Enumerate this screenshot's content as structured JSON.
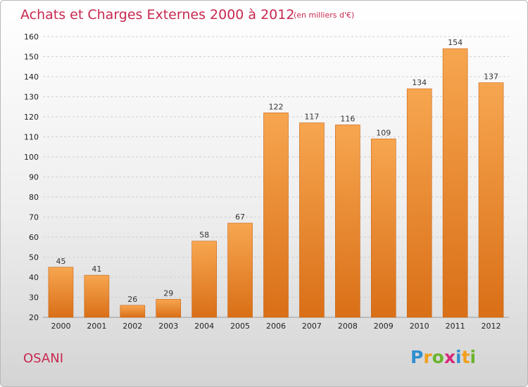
{
  "chart_data": {
    "type": "bar",
    "title": "Achats et Charges Externes 2000 à 2012",
    "subtitle": "(en milliers d'€)",
    "categories": [
      "2000",
      "2001",
      "2002",
      "2003",
      "2004",
      "2005",
      "2006",
      "2007",
      "2008",
      "2009",
      "2010",
      "2011",
      "2012"
    ],
    "values": [
      45,
      41,
      26,
      29,
      58,
      67,
      122,
      117,
      116,
      109,
      134,
      154,
      137
    ],
    "ylim": [
      20,
      160
    ],
    "yticks": [
      20,
      30,
      40,
      50,
      60,
      70,
      80,
      90,
      100,
      110,
      120,
      130,
      140,
      150,
      160
    ],
    "xlabel": "",
    "ylabel": "",
    "grid": true,
    "data_labels": true,
    "bar_color": "#e8822c"
  },
  "commune": "OSANI",
  "logo": {
    "letters": [
      "P",
      "r",
      "o",
      "x",
      "i",
      "t",
      "i"
    ],
    "colors": [
      "#2f8fd0",
      "#f2a01c",
      "#6ab42d",
      "#d8267c",
      "#2f8fd0",
      "#f2a01c",
      "#6ab42d"
    ]
  }
}
